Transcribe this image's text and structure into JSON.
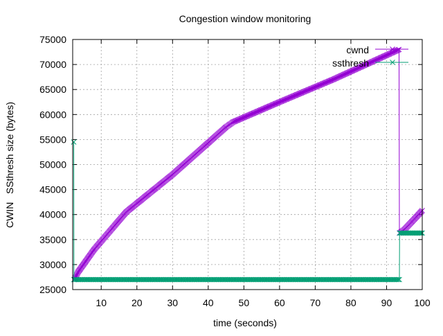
{
  "chart_data": {
    "type": "line",
    "title": "Congestion window monitoring",
    "xlabel": "time (seconds)",
    "ylabel": "CWIN   SSthresh size (bytes)",
    "xlim": [
      2,
      100
    ],
    "ylim": [
      25000,
      75000
    ],
    "xticks": [
      10,
      20,
      30,
      40,
      50,
      60,
      70,
      80,
      90,
      100
    ],
    "yticks": [
      25000,
      30000,
      35000,
      40000,
      45000,
      50000,
      55000,
      60000,
      65000,
      70000,
      75000
    ],
    "grid": true,
    "legend_position": "top-right",
    "series": [
      {
        "name": "cwnd",
        "color": "#9400d3",
        "points": [
          [
            2.5,
            27000
          ],
          [
            3.5,
            28500
          ],
          [
            8,
            33000
          ],
          [
            14,
            38000
          ],
          [
            17,
            40500
          ],
          [
            30,
            48000
          ],
          [
            45,
            57500
          ],
          [
            47,
            58500
          ],
          [
            60,
            62500
          ],
          [
            75,
            67000
          ],
          [
            93.5,
            73000
          ],
          [
            93.6,
            36300
          ],
          [
            95,
            37000
          ],
          [
            97,
            38500
          ],
          [
            100,
            40800
          ]
        ]
      },
      {
        "name": "ssthresh",
        "color": "#009e73",
        "points": [
          [
            2.3,
            54500
          ],
          [
            2.35,
            27000
          ],
          [
            93.6,
            27000
          ],
          [
            93.65,
            36300
          ],
          [
            100,
            36300
          ]
        ]
      }
    ]
  }
}
